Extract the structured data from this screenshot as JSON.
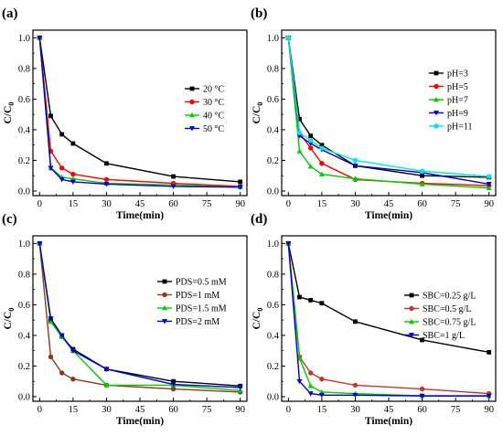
{
  "figure": {
    "panels": [
      {
        "id": "a",
        "panel_label": "(a)",
        "ylabel_main": "C/C",
        "ylabel_sub": "0",
        "xlabel": "Time(min)"
      },
      {
        "id": "b",
        "panel_label": "(b)",
        "ylabel_main": "C/C",
        "ylabel_sub": "0",
        "xlabel": "Time(min)"
      },
      {
        "id": "c",
        "panel_label": "(c)",
        "ylabel_main": "C/C",
        "ylabel_sub": "0",
        "xlabel": "Time(min)"
      },
      {
        "id": "d",
        "panel_label": "(d)",
        "ylabel_main": "C/C",
        "ylabel_sub": "0",
        "xlabel": "Time(min)"
      }
    ]
  },
  "chart_data": [
    {
      "type": "line",
      "panel": "(a)",
      "xlabel": "Time(min)",
      "ylabel": "C/C0",
      "xlim": [
        -3,
        93
      ],
      "ylim": [
        -0.03,
        1.05
      ],
      "xticks": [
        "0",
        "15",
        "30",
        "45",
        "60",
        "75",
        "90"
      ],
      "yticks": [
        "0.0",
        "0.2",
        "0.4",
        "0.6",
        "0.8",
        "1.0"
      ],
      "legend_position": "right",
      "x": [
        0,
        5,
        10,
        15,
        30,
        60,
        90
      ],
      "series": [
        {
          "name": "20 °C",
          "color": "#000000",
          "marker": "square",
          "values": [
            1.0,
            0.49,
            0.37,
            0.31,
            0.18,
            0.095,
            0.06
          ]
        },
        {
          "name": "30 °C",
          "color": "#ff0000",
          "marker": "circle",
          "values": [
            1.0,
            0.26,
            0.15,
            0.11,
            0.075,
            0.05,
            0.03
          ]
        },
        {
          "name": "40 °C",
          "color": "#00cc00",
          "marker": "triangle-up",
          "values": [
            1.0,
            0.15,
            0.09,
            0.08,
            0.05,
            0.04,
            0.025
          ]
        },
        {
          "name": "50 °C",
          "color": "#0000cc",
          "marker": "triangle-down",
          "values": [
            1.0,
            0.15,
            0.075,
            0.06,
            0.045,
            0.03,
            0.025
          ]
        }
      ]
    },
    {
      "type": "line",
      "panel": "(b)",
      "xlabel": "Time(min)",
      "ylabel": "C/C0",
      "xlim": [
        -3,
        93
      ],
      "ylim": [
        -0.03,
        1.05
      ],
      "xticks": [
        "0",
        "15",
        "30",
        "45",
        "60",
        "75",
        "90"
      ],
      "yticks": [
        "0.0",
        "0.2",
        "0.4",
        "0.6",
        "0.8",
        "1.0"
      ],
      "legend_position": "right",
      "x": [
        0,
        5,
        10,
        15,
        30,
        60,
        90
      ],
      "series": [
        {
          "name": "pH=3",
          "color": "#000000",
          "marker": "square",
          "values": [
            1.0,
            0.47,
            0.36,
            0.3,
            0.165,
            0.1,
            0.09
          ]
        },
        {
          "name": "pH=5",
          "color": "#ff0000",
          "marker": "circle",
          "values": [
            1.0,
            0.38,
            0.28,
            0.18,
            0.075,
            0.05,
            0.035
          ]
        },
        {
          "name": "pH=7",
          "color": "#00cc00",
          "marker": "triangle-up",
          "values": [
            1.0,
            0.26,
            0.16,
            0.11,
            0.08,
            0.045,
            0.02
          ]
        },
        {
          "name": "pH=9",
          "color": "#0000cc",
          "marker": "triangle-down",
          "values": [
            1.0,
            0.36,
            0.31,
            0.27,
            0.165,
            0.12,
            0.045
          ]
        },
        {
          "name": "pH=11",
          "color": "#00e5e5",
          "marker": "circle",
          "values": [
            1.0,
            0.38,
            0.33,
            0.28,
            0.2,
            0.13,
            0.095
          ]
        }
      ]
    },
    {
      "type": "line",
      "panel": "(c)",
      "xlabel": "Time(min)",
      "ylabel": "C/C0",
      "xlim": [
        -3,
        93
      ],
      "ylim": [
        -0.03,
        1.05
      ],
      "xticks": [
        "0",
        "15",
        "30",
        "45",
        "60",
        "75",
        "90"
      ],
      "yticks": [
        "0.0",
        "0.2",
        "0.4",
        "0.6",
        "0.8",
        "1.0"
      ],
      "legend_position": "right",
      "x": [
        0,
        5,
        10,
        15,
        30,
        60,
        90
      ],
      "series": [
        {
          "name": "PDS=0.5 mM",
          "color": "#000000",
          "marker": "square",
          "values": [
            1.0,
            0.5,
            0.39,
            0.31,
            0.18,
            0.1,
            0.07
          ]
        },
        {
          "name": "PDS=1 mM",
          "color": "#8b3a1a",
          "marker": "circle",
          "values": [
            1.0,
            0.26,
            0.155,
            0.115,
            0.075,
            0.05,
            0.03
          ]
        },
        {
          "name": "PDS=1.5 mM",
          "color": "#00cc00",
          "marker": "triangle-up",
          "values": [
            1.0,
            0.49,
            0.39,
            0.3,
            0.075,
            0.075,
            0.04
          ]
        },
        {
          "name": "PDS=2 mM",
          "color": "#0000cc",
          "marker": "triangle-down",
          "values": [
            1.0,
            0.51,
            0.4,
            0.3,
            0.18,
            0.08,
            0.06
          ]
        }
      ]
    },
    {
      "type": "line",
      "panel": "(d)",
      "xlabel": "Time(min)",
      "ylabel": "C/C0",
      "xlim": [
        -3,
        93
      ],
      "ylim": [
        -0.03,
        1.05
      ],
      "xticks": [
        "0",
        "15",
        "30",
        "45",
        "60",
        "75",
        "90"
      ],
      "yticks": [
        "0.0",
        "0.2",
        "0.4",
        "0.6",
        "0.8",
        "1.0"
      ],
      "legend_position": "right",
      "x": [
        0,
        5,
        10,
        15,
        30,
        60,
        90
      ],
      "series": [
        {
          "name": "SBC=0.25 g/L",
          "color": "#000000",
          "marker": "square",
          "values": [
            1.0,
            0.65,
            0.63,
            0.61,
            0.49,
            0.37,
            0.29
          ]
        },
        {
          "name": "SBC=0.5 g/L",
          "color": "#c0392b",
          "marker": "circle",
          "values": [
            1.0,
            0.26,
            0.155,
            0.115,
            0.075,
            0.05,
            0.02
          ]
        },
        {
          "name": "SBC=0.75 g/L",
          "color": "#00cc00",
          "marker": "triangle-up",
          "values": [
            1.0,
            0.25,
            0.07,
            0.03,
            0.02,
            0.005,
            0.005
          ]
        },
        {
          "name": "SBC=1 g/L",
          "color": "#0000cc",
          "marker": "triangle-down",
          "values": [
            1.0,
            0.1,
            0.02,
            0.01,
            0.01,
            0.005,
            0.005
          ]
        }
      ]
    }
  ]
}
